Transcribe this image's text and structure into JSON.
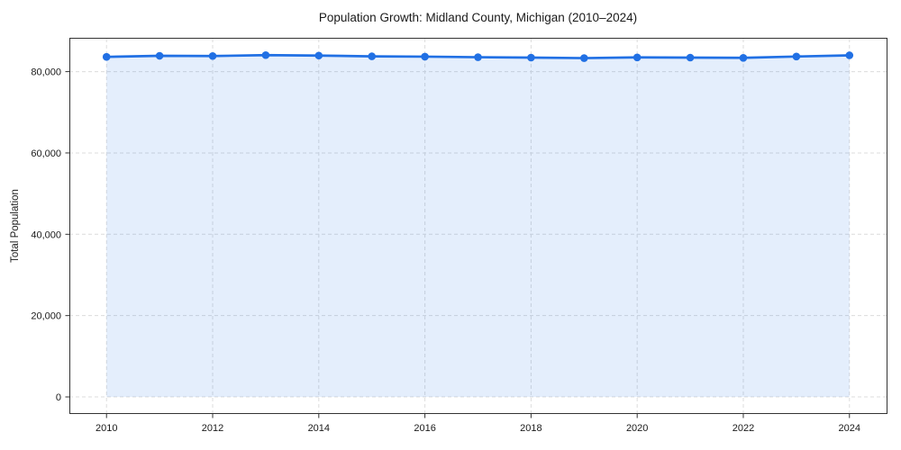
{
  "chart": {
    "title": "Population Growth: Midland County, Michigan (2010–2024)",
    "y_axis_label": "Total Population"
  },
  "chart_data": {
    "type": "line",
    "title": "Population Growth: Midland County, Michigan (2010–2024)",
    "xlabel": "",
    "ylabel": "Total Population",
    "x": [
      2010,
      2011,
      2012,
      2013,
      2014,
      2015,
      2016,
      2017,
      2018,
      2019,
      2020,
      2021,
      2022,
      2023,
      2024
    ],
    "series": [
      {
        "name": "Total Population",
        "values": [
          83630,
          83890,
          83840,
          84060,
          83950,
          83760,
          83690,
          83550,
          83450,
          83330,
          83500,
          83450,
          83390,
          83720,
          84010
        ]
      }
    ],
    "xticks": [
      2010,
      2012,
      2014,
      2016,
      2018,
      2020,
      2022,
      2024
    ],
    "xtick_labels": [
      "2010",
      "2012",
      "2014",
      "2016",
      "2018",
      "2020",
      "2022",
      "2024"
    ],
    "yticks": [
      0,
      20000,
      40000,
      60000,
      80000
    ],
    "ytick_labels": [
      "0",
      "20,000",
      "40,000",
      "60,000",
      "80,000"
    ],
    "xlim": [
      2009.3,
      2024.7
    ],
    "ylim": [
      -4200,
      88100
    ],
    "grid": true,
    "grid_style": "dashed",
    "legend": false,
    "marker": "circle",
    "area_baseline": 0,
    "colors": {
      "line": "#2170e4",
      "marker": "#2170e4",
      "fill": "rgba(33, 112, 228, 0.12)",
      "grid": "#dcdcdc",
      "spine": "#333333",
      "text": "#1a1a1a"
    }
  }
}
